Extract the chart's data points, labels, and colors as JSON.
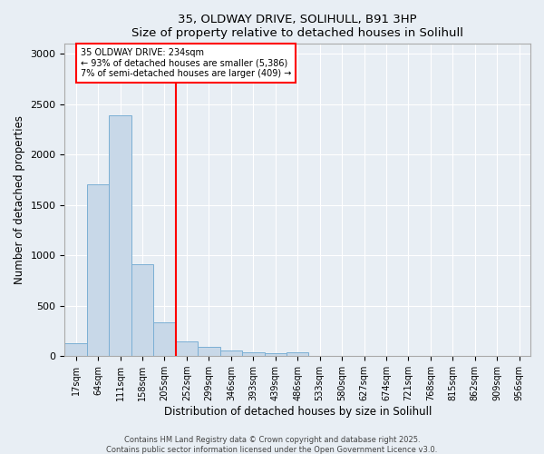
{
  "title_line1": "35, OLDWAY DRIVE, SOLIHULL, B91 3HP",
  "title_line2": "Size of property relative to detached houses in Solihull",
  "xlabel": "Distribution of detached houses by size in Solihull",
  "ylabel": "Number of detached properties",
  "categories": [
    "17sqm",
    "64sqm",
    "111sqm",
    "158sqm",
    "205sqm",
    "252sqm",
    "299sqm",
    "346sqm",
    "393sqm",
    "439sqm",
    "486sqm",
    "533sqm",
    "580sqm",
    "627sqm",
    "674sqm",
    "721sqm",
    "768sqm",
    "815sqm",
    "862sqm",
    "909sqm",
    "956sqm"
  ],
  "values": [
    130,
    1710,
    2390,
    910,
    340,
    150,
    90,
    55,
    35,
    25,
    35,
    0,
    0,
    0,
    0,
    0,
    0,
    0,
    0,
    0,
    0
  ],
  "bar_color": "#c8d8e8",
  "bar_edgecolor": "#7bafd4",
  "vline_color": "red",
  "annotation_text": "35 OLDWAY DRIVE: 234sqm\n← 93% of detached houses are smaller (5,386)\n7% of semi-detached houses are larger (409) →",
  "annotation_box_color": "white",
  "annotation_box_edgecolor": "red",
  "ylim": [
    0,
    3100
  ],
  "yticks": [
    0,
    500,
    1000,
    1500,
    2000,
    2500,
    3000
  ],
  "background_color": "#e8eef4",
  "grid_color": "white",
  "footer_line1": "Contains HM Land Registry data © Crown copyright and database right 2025.",
  "footer_line2": "Contains public sector information licensed under the Open Government Licence v3.0."
}
